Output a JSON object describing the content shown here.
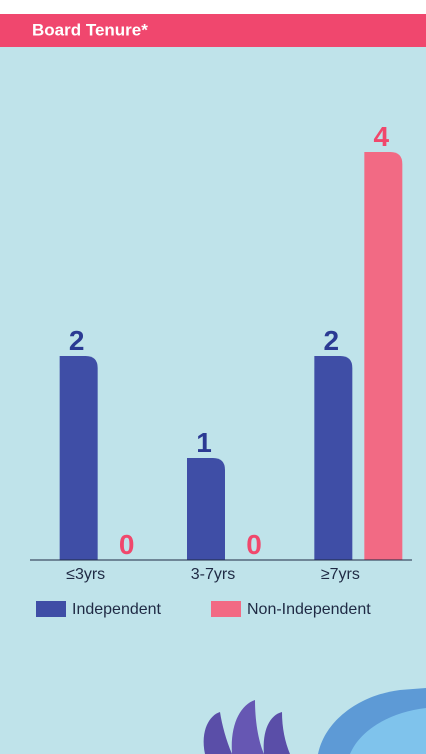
{
  "chart_data": {
    "type": "bar",
    "title": "Board Tenure*",
    "categories": [
      "≤3yrs",
      "3-7yrs",
      "≥7yrs"
    ],
    "series": [
      {
        "name": "Independent",
        "color": "#3f4ea6",
        "label_color": "#2b3a93",
        "values": [
          2,
          1,
          2
        ]
      },
      {
        "name": "Non-Independent",
        "color": "#f26a84",
        "label_color": "#f0486c",
        "values": [
          0,
          0,
          4
        ]
      }
    ],
    "ylim": [
      0,
      4
    ]
  }
}
